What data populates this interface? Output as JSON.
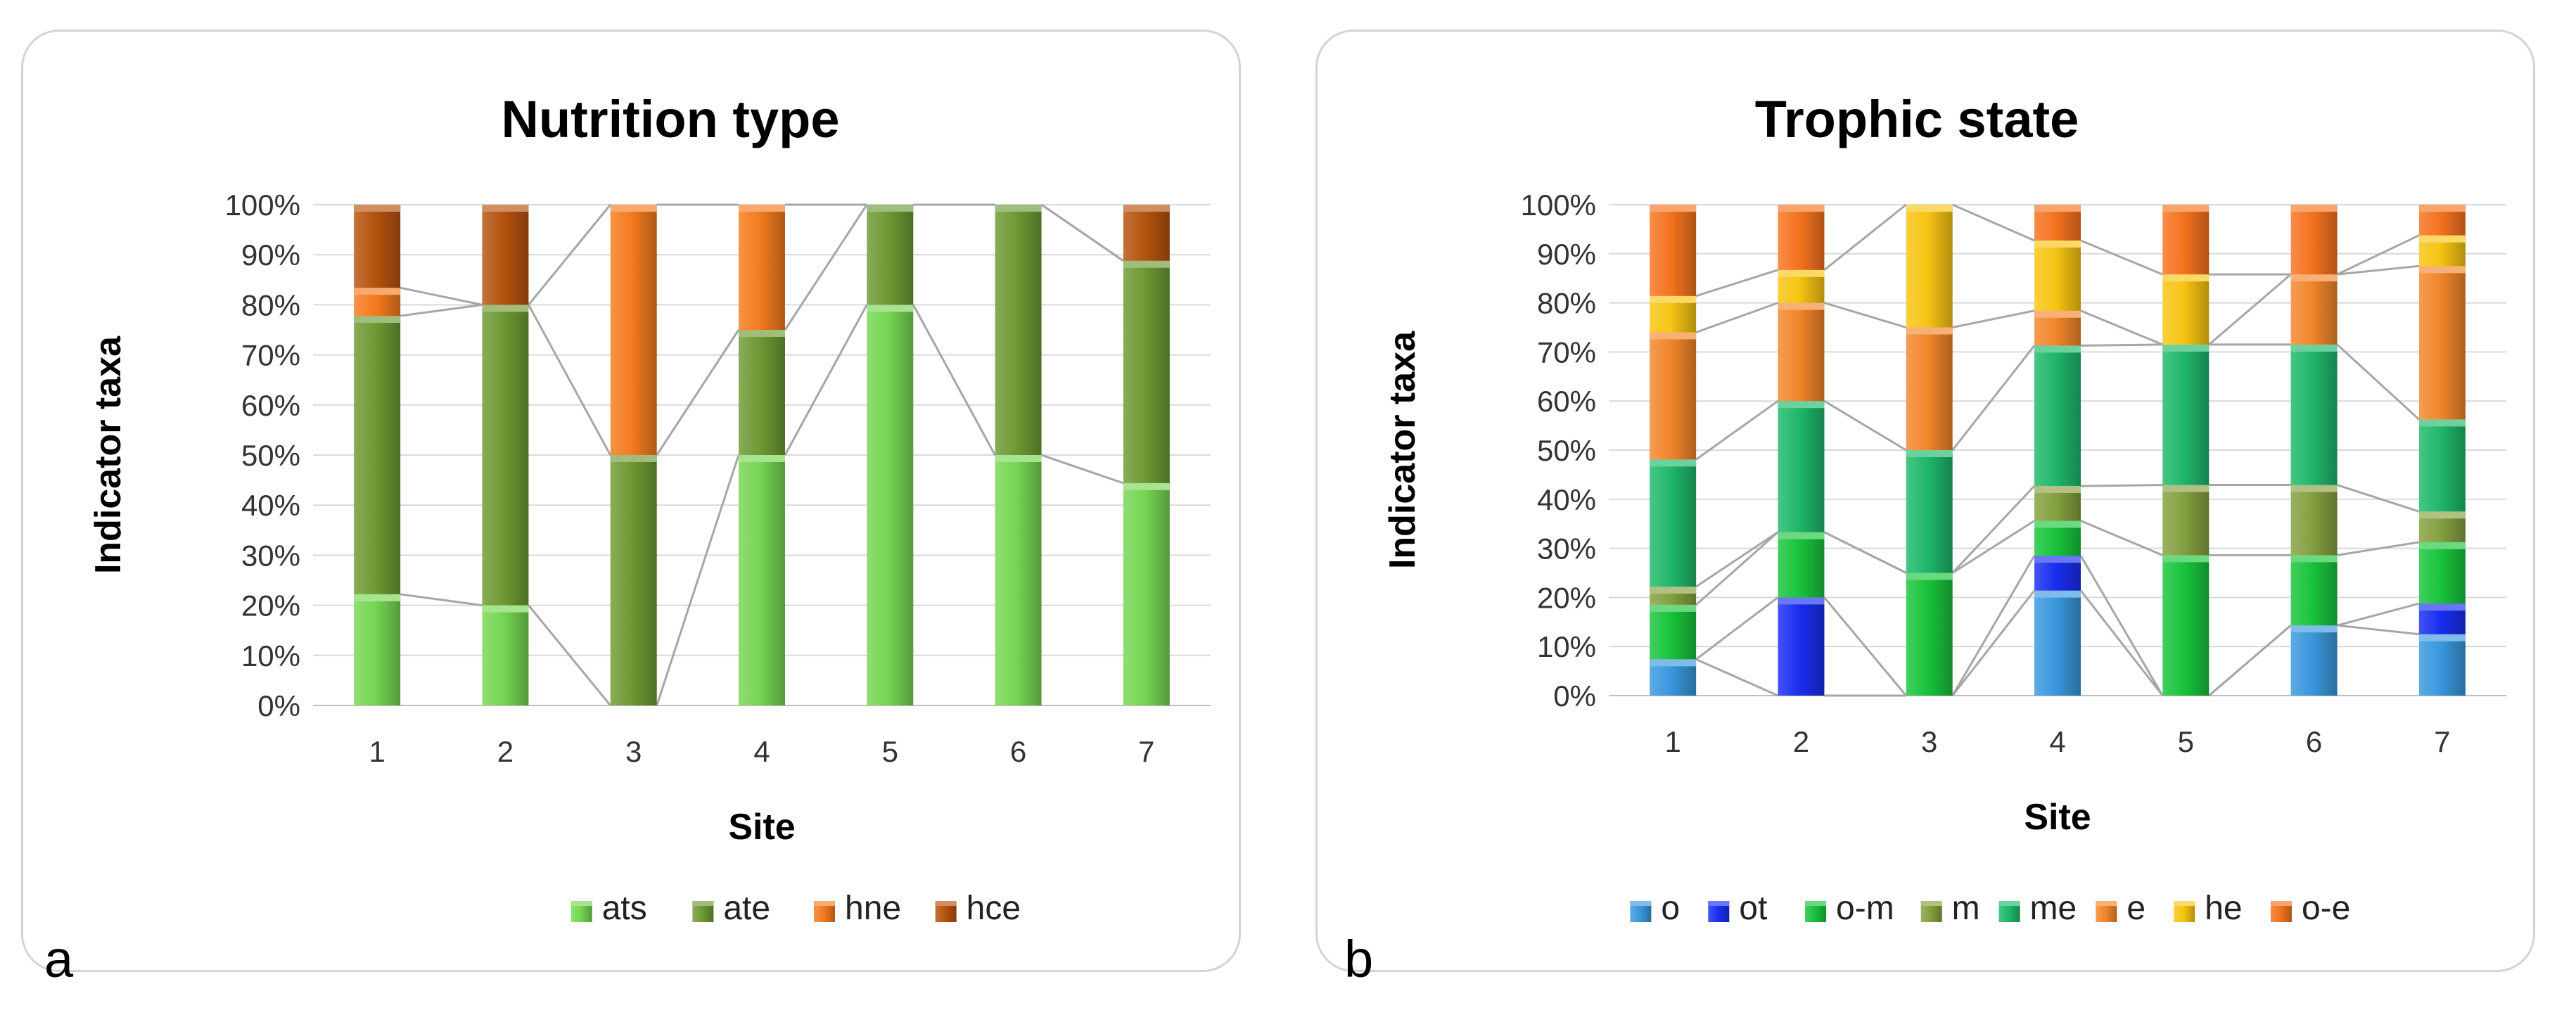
{
  "palette": {
    "ats": "#76d653",
    "ate": "#6e9a34",
    "hne": "#f47b1e",
    "hce": "#b5530f",
    "o": "#3a98dd",
    "ot": "#1a2ef0",
    "o-m": "#19c43c",
    "m": "#85a040",
    "me": "#1fb86a",
    "e": "#f2862c",
    "he": "#f7c513",
    "o-e": "#f57320"
  },
  "panels": [
    {
      "letter": "a",
      "chart_data": {
        "type": "bar",
        "stacked": true,
        "title": "Nutrition type",
        "xlabel": "Site",
        "ylabel": "Indicator taxa",
        "ylim": [
          0,
          100
        ],
        "y_ticks": [
          "0%",
          "10%",
          "20%",
          "30%",
          "40%",
          "50%",
          "60%",
          "70%",
          "80%",
          "90%",
          "100%"
        ],
        "categories": [
          "1",
          "2",
          "3",
          "4",
          "5",
          "6",
          "7"
        ],
        "series": [
          {
            "name": "ats",
            "values": [
              22.2,
              20,
              0,
              50,
              80,
              50,
              44.4
            ]
          },
          {
            "name": "ate",
            "values": [
              55.6,
              60,
              50,
              25,
              20,
              50,
              44.4
            ]
          },
          {
            "name": "hne",
            "values": [
              5.6,
              0,
              50,
              25,
              0,
              0,
              0
            ]
          },
          {
            "name": "hce",
            "values": [
              16.6,
              20,
              0,
              0,
              0,
              0,
              11.2
            ]
          }
        ],
        "grid": true,
        "legend": "bottom"
      }
    },
    {
      "letter": "b",
      "chart_data": {
        "type": "bar",
        "stacked": true,
        "title": "Trophic state",
        "xlabel": "Site",
        "ylabel": "Indicator taxa",
        "ylim": [
          0,
          100
        ],
        "y_ticks": [
          "0%",
          "10%",
          "20%",
          "30%",
          "40%",
          "50%",
          "60%",
          "70%",
          "80%",
          "90%",
          "100%"
        ],
        "categories": [
          "1",
          "2",
          "3",
          "4",
          "5",
          "6",
          "7"
        ],
        "series": [
          {
            "name": "o",
            "values": [
              7.4,
              0,
              0,
              21.4,
              0,
              14.3,
              12.5
            ]
          },
          {
            "name": "ot",
            "values": [
              0,
              20,
              0,
              7.1,
              0,
              0,
              6.25
            ]
          },
          {
            "name": "o-m",
            "values": [
              11.1,
              13.3,
              25,
              7.1,
              28.6,
              14.3,
              12.5
            ]
          },
          {
            "name": "m",
            "values": [
              3.7,
              0,
              0,
              7.1,
              14.3,
              14.3,
              6.25
            ]
          },
          {
            "name": "me",
            "values": [
              25.9,
              26.7,
              25,
              28.6,
              28.6,
              28.6,
              18.75
            ]
          },
          {
            "name": "e",
            "values": [
              25.9,
              20,
              25,
              7.1,
              0,
              14.3,
              31.25
            ]
          },
          {
            "name": "he",
            "values": [
              7.4,
              6.7,
              25,
              14.3,
              14.3,
              0,
              6.25
            ]
          },
          {
            "name": "o-e",
            "values": [
              18.6,
              13.3,
              0,
              7.3,
              14.2,
              14.2,
              6.25
            ]
          }
        ],
        "grid": true,
        "legend": "bottom"
      }
    }
  ]
}
